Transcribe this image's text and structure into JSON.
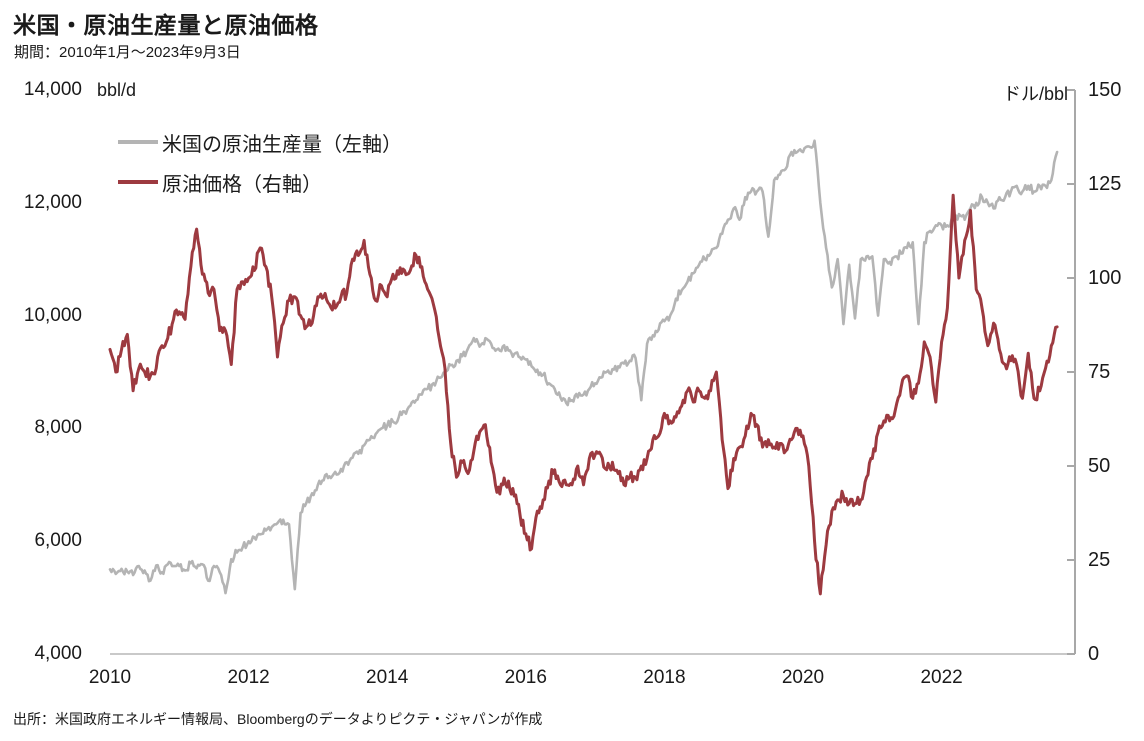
{
  "header": {
    "title": "米国・原油生産量と原油価格",
    "subtitle": "期間：2010年1月～2023年9月3日"
  },
  "footer": {
    "source": "出所：米国政府エネルギー情報局、Bloombergのデータよりピクテ・ジャパンが作成"
  },
  "colors": {
    "production_gray": "#b4b4b4",
    "price_red": "#9d3a40",
    "axis_line": "#c9c9c9",
    "right_spine": "#a8a8a8",
    "text": "#1a1a1a"
  },
  "chart_data": {
    "type": "line",
    "title": "米国・原油生産量と原油価格",
    "period": "2010年1月～2023年9月3日",
    "x_start_year": 2010,
    "x_resolution": "monthly",
    "x_end": "2023-09",
    "x_tick_labels": [
      "2010",
      "2012",
      "2014",
      "2016",
      "2018",
      "2020",
      "2022"
    ],
    "grid": false,
    "legend_position": "top-left-inside",
    "left_axis": {
      "unit": "bbl/d",
      "min": 4000,
      "max": 14000,
      "tick_values": [
        14000,
        12000,
        10000,
        8000,
        6000,
        4000
      ],
      "tick_labels": [
        "14,000",
        "12,000",
        "10,000",
        "8,000",
        "6,000",
        "4,000"
      ]
    },
    "right_axis": {
      "unit": "ドル/bbl",
      "min": 0,
      "max": 150,
      "tick_values": [
        150,
        125,
        100,
        75,
        50,
        25,
        0
      ],
      "tick_labels": [
        "150",
        "125",
        "100",
        "75",
        "50",
        "25",
        "0"
      ]
    },
    "series": [
      {
        "name": "米国の原油生産量（左軸）",
        "axis": "left",
        "color": "#b4b4b4",
        "unit": "bbl/d",
        "values": [
          5500,
          5420,
          5510,
          5460,
          5400,
          5560,
          5480,
          5300,
          5570,
          5450,
          5590,
          5560,
          5560,
          5480,
          5610,
          5520,
          5590,
          5300,
          5560,
          5450,
          5080,
          5680,
          5800,
          5900,
          6000,
          6070,
          6120,
          6190,
          6250,
          6320,
          6380,
          6300,
          5150,
          6500,
          6680,
          6850,
          7000,
          7080,
          7150,
          7230,
          7280,
          7400,
          7480,
          7550,
          7700,
          7800,
          7900,
          8000,
          8050,
          8120,
          8200,
          8300,
          8400,
          8500,
          8600,
          8700,
          8800,
          8900,
          9000,
          9120,
          9200,
          9280,
          9420,
          9600,
          9450,
          9600,
          9500,
          9400,
          9450,
          9380,
          9320,
          9260,
          9220,
          9100,
          9040,
          8950,
          8800,
          8700,
          8550,
          8450,
          8500,
          8550,
          8600,
          8700,
          8800,
          8900,
          9000,
          9050,
          9100,
          9150,
          9200,
          9250,
          8500,
          9500,
          9650,
          9750,
          9900,
          10000,
          10300,
          10450,
          10600,
          10750,
          10900,
          11000,
          11100,
          11200,
          11450,
          11700,
          11900,
          11700,
          12100,
          12200,
          12200,
          12200,
          11400,
          12400,
          12500,
          12600,
          12900,
          12900,
          12900,
          13000,
          13100,
          12000,
          11200,
          10500,
          11000,
          9850,
          10900,
          9950,
          11000,
          11050,
          11050,
          10000,
          11000,
          10950,
          11050,
          11100,
          11200,
          11300,
          9850,
          11300,
          11500,
          11600,
          11600,
          11600,
          11700,
          11800,
          11700,
          11900,
          12000,
          12100,
          12000,
          11900,
          12100,
          12100,
          12200,
          12300,
          12200,
          12300,
          12200,
          12300,
          12300,
          12400,
          12900
        ]
      },
      {
        "name": "原油価格（右軸）",
        "axis": "right",
        "color": "#9d3a40",
        "unit": "ドル/bbl",
        "values": [
          81,
          75,
          81,
          85,
          70,
          76,
          75,
          74,
          76,
          82,
          84,
          89,
          91,
          89,
          103,
          113,
          101,
          96,
          97,
          86,
          86,
          77,
          97,
          99,
          100,
          102,
          108,
          103,
          95,
          79,
          88,
          94,
          95,
          90,
          87,
          88,
          95,
          95,
          93,
          92,
          95,
          96,
          105,
          106,
          110,
          101,
          94,
          98,
          95,
          101,
          101,
          102,
          102,
          106,
          103,
          97,
          93,
          84,
          76,
          56,
          47,
          51,
          48,
          54,
          59,
          61,
          51,
          43,
          45,
          46,
          42,
          37,
          32,
          28,
          38,
          41,
          46,
          49,
          45,
          45,
          45,
          50,
          45,
          52,
          53,
          53,
          49,
          51,
          48,
          45,
          47,
          47,
          50,
          52,
          57,
          58,
          64,
          62,
          63,
          66,
          70,
          67,
          70,
          68,
          70,
          75,
          57,
          44,
          52,
          55,
          58,
          64,
          61,
          55,
          57,
          55,
          56,
          54,
          57,
          60,
          58,
          50,
          30,
          16,
          29,
          38,
          41,
          42,
          40,
          40,
          41,
          47,
          52,
          59,
          62,
          62,
          65,
          71,
          74,
          68,
          72,
          83,
          79,
          67,
          83,
          92,
          122,
          100,
          110,
          118,
          97,
          92,
          82,
          88,
          81,
          77,
          78,
          77,
          68,
          80,
          68,
          70,
          76,
          82,
          87
        ]
      }
    ]
  }
}
